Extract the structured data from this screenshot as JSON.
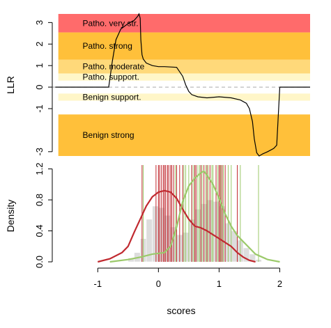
{
  "chart_data": [
    {
      "type": "line",
      "panel": "top",
      "ylabel": "LLR",
      "xlim": [
        -1.75,
        2.5
      ],
      "ylim": [
        -3.2,
        3.4
      ],
      "yticks": [
        "3",
        "2",
        "1",
        "0",
        "-1",
        "-3"
      ],
      "colors": {
        "very_strong": "#ff6b6b",
        "strong": "#ffc03a",
        "moderate": "#ffd97a",
        "supporting": "#fff6c8",
        "line": "#000000",
        "zero_line": "#aaaaaa"
      },
      "bands": [
        {
          "label": "Patho. very str.",
          "y0": 2.54,
          "y1": 3.4,
          "color": "#ff6b6b"
        },
        {
          "label": "Patho. strong",
          "y0": 1.27,
          "y1": 2.54,
          "color": "#ffc03a"
        },
        {
          "label": "Patho. moderate",
          "y0": 0.63,
          "y1": 1.27,
          "color": "#ffd97a"
        },
        {
          "label": "Patho. support.",
          "y0": 0.3,
          "y1": 0.63,
          "color": "#fff6c8"
        },
        {
          "label": "Benign support.",
          "y0": -0.63,
          "y1": -0.3,
          "color": "#fff6c8"
        },
        {
          "label": "Benign strong",
          "y0": -3.2,
          "y1": -1.27,
          "color": "#ffc03a"
        }
      ],
      "series": [
        {
          "x": [
            -1.7,
            -0.82,
            -0.76,
            -0.7,
            -0.62,
            -0.5,
            -0.4,
            -0.34,
            -0.32,
            -0.3,
            -0.29,
            -0.27,
            -0.25,
            -0.2,
            -0.1,
            0.0,
            0.1,
            0.3,
            0.4,
            0.45,
            0.5,
            0.55,
            0.65,
            0.8,
            1.0,
            1.2,
            1.35,
            1.45,
            1.5,
            1.55,
            1.58,
            1.62,
            1.66,
            1.72,
            1.8,
            1.9,
            1.95,
            1.97,
            2.0,
            2.1,
            2.5
          ],
          "y": [
            0.0,
            0.0,
            1.2,
            2.2,
            2.7,
            2.95,
            3.1,
            3.3,
            3.4,
            3.2,
            2.2,
            1.5,
            1.3,
            1.12,
            1.0,
            0.95,
            0.95,
            0.92,
            0.5,
            0.1,
            -0.2,
            -0.35,
            -0.45,
            -0.5,
            -0.45,
            -0.5,
            -0.6,
            -0.75,
            -1.0,
            -1.6,
            -2.4,
            -3.05,
            -3.2,
            -3.1,
            -3.0,
            -2.85,
            -2.7,
            -1.6,
            0.0,
            0.0,
            0.0
          ]
        }
      ]
    },
    {
      "type": "area",
      "panel": "bottom",
      "xlabel": "scores",
      "ylabel": "Density",
      "xlim": [
        -1.75,
        2.5
      ],
      "ylim": [
        0,
        1.25
      ],
      "xticks": [
        "-1",
        "0",
        "1",
        "2"
      ],
      "yticks": [
        "0.0",
        "0.4",
        "0.8",
        "1.2"
      ],
      "colors": {
        "red": "#c0292f",
        "green": "#9bc96a",
        "hist": "#dddddd"
      },
      "histogram": {
        "bin_width": 0.1,
        "bin_starts": [
          -0.5,
          -0.4,
          -0.3,
          -0.2,
          -0.1,
          0.0,
          0.1,
          0.2,
          0.3,
          0.4,
          0.5,
          0.6,
          0.7,
          0.8,
          0.9,
          1.0,
          1.1,
          1.2,
          1.3,
          1.4,
          1.5,
          1.6
        ],
        "heights": [
          0.05,
          0.12,
          0.3,
          0.55,
          0.72,
          0.7,
          0.6,
          0.45,
          0.35,
          0.38,
          0.55,
          0.68,
          0.75,
          0.8,
          0.78,
          0.72,
          0.5,
          0.4,
          0.28,
          0.18,
          0.1,
          0.03
        ]
      },
      "series": [
        {
          "color": "#c0292f",
          "x": [
            -1.0,
            -0.8,
            -0.6,
            -0.5,
            -0.4,
            -0.3,
            -0.2,
            -0.1,
            0.0,
            0.1,
            0.2,
            0.3,
            0.4,
            0.5,
            0.6,
            0.7,
            0.8,
            0.9,
            1.0,
            1.1,
            1.2,
            1.3,
            1.4,
            1.5,
            1.6
          ],
          "y": [
            0.0,
            0.04,
            0.12,
            0.2,
            0.38,
            0.55,
            0.72,
            0.84,
            0.9,
            0.92,
            0.9,
            0.82,
            0.68,
            0.55,
            0.46,
            0.44,
            0.4,
            0.35,
            0.3,
            0.25,
            0.2,
            0.12,
            0.06,
            0.02,
            0.0
          ]
        },
        {
          "color": "#9bc96a",
          "x": [
            -0.8,
            -0.5,
            -0.3,
            -0.1,
            0.0,
            0.1,
            0.2,
            0.3,
            0.4,
            0.5,
            0.6,
            0.7,
            0.75,
            0.8,
            0.9,
            1.0,
            1.1,
            1.2,
            1.3,
            1.4,
            1.5,
            1.6,
            1.8,
            2.0
          ],
          "y": [
            0.0,
            0.03,
            0.06,
            0.1,
            0.11,
            0.12,
            0.2,
            0.45,
            0.78,
            0.98,
            1.08,
            1.15,
            1.17,
            1.12,
            1.0,
            0.82,
            0.62,
            0.46,
            0.34,
            0.26,
            0.18,
            0.1,
            0.03,
            0.0
          ]
        }
      ],
      "rug_red": [
        -0.27,
        -0.04,
        0.0,
        0.02,
        0.05,
        0.08,
        0.1,
        0.12,
        0.15,
        0.17,
        0.2,
        0.22,
        0.25,
        0.3,
        0.35,
        0.4,
        0.55,
        0.6,
        0.62,
        0.7,
        0.75,
        0.8,
        0.85,
        0.95,
        1.0,
        1.02,
        1.05,
        1.1,
        1.3
      ],
      "rug_green": [
        -0.25,
        0.28,
        0.42,
        0.45,
        0.5,
        0.55,
        0.58,
        0.65,
        0.68,
        0.72,
        0.78,
        0.82,
        0.88,
        0.9,
        0.98,
        1.03,
        1.07,
        1.15,
        1.2,
        1.35,
        1.65
      ]
    }
  ]
}
